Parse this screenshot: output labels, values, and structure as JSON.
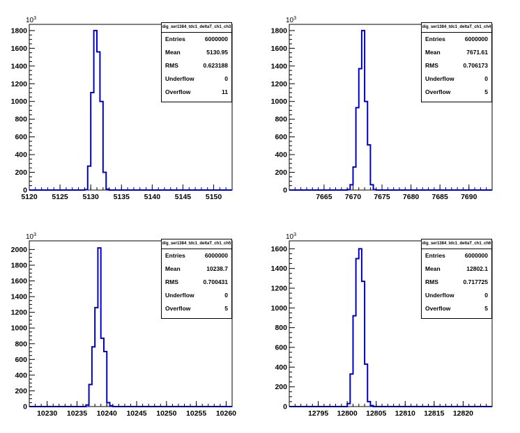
{
  "colors": {
    "line": "#0000cc",
    "axis": "#000000",
    "background": "#ffffff"
  },
  "chart_data": [
    {
      "type": "histogram",
      "title": "dig_ser1384_tdc1_deltaT_ch1_ch3",
      "y_multiplier": "10",
      "y_multiplier_exp": "3",
      "xlim": [
        5120,
        5153
      ],
      "ylim": [
        0,
        1870
      ],
      "x_ticks": [
        5120,
        5125,
        5130,
        5135,
        5140,
        5145,
        5150
      ],
      "y_ticks": [
        0,
        200,
        400,
        600,
        800,
        1000,
        1200,
        1400,
        1600,
        1800
      ],
      "bin_width": 0.5,
      "bins": [
        [
          5128.5,
          0
        ],
        [
          5129,
          5
        ],
        [
          5129.5,
          270
        ],
        [
          5130,
          1100
        ],
        [
          5130.5,
          1800
        ],
        [
          5131,
          1560
        ],
        [
          5131.5,
          1000
        ],
        [
          5132,
          200
        ],
        [
          5132.5,
          10
        ],
        [
          5133,
          0
        ]
      ],
      "stats": [
        {
          "label": "Entries",
          "value": "6000000"
        },
        {
          "label": "Mean",
          "value": "5130.95"
        },
        {
          "label": "RMS",
          "value": "0.623188"
        },
        {
          "label": "Underflow",
          "value": "0"
        },
        {
          "label": "Overflow",
          "value": "11"
        }
      ]
    },
    {
      "type": "histogram",
      "title": "dig_ser1384_tdc1_deltaT_ch1_ch4",
      "y_multiplier": "10",
      "y_multiplier_exp": "3",
      "xlim": [
        7659,
        7694
      ],
      "ylim": [
        0,
        1870
      ],
      "x_ticks": [
        7665,
        7670,
        7675,
        7680,
        7685,
        7690
      ],
      "y_ticks": [
        0,
        200,
        400,
        600,
        800,
        1000,
        1200,
        1400,
        1600,
        1800
      ],
      "bin_width": 0.5,
      "bins": [
        [
          7668.5,
          0
        ],
        [
          7669,
          5
        ],
        [
          7669.5,
          60
        ],
        [
          7670,
          260
        ],
        [
          7670.5,
          930
        ],
        [
          7671,
          1370
        ],
        [
          7671.5,
          1800
        ],
        [
          7672,
          1000
        ],
        [
          7672.5,
          510
        ],
        [
          7673,
          60
        ],
        [
          7673.5,
          5
        ],
        [
          7674,
          0
        ]
      ],
      "stats": [
        {
          "label": "Entries",
          "value": "6000000"
        },
        {
          "label": "Mean",
          "value": "7671.61"
        },
        {
          "label": "RMS",
          "value": "0.706173"
        },
        {
          "label": "Underflow",
          "value": "0"
        },
        {
          "label": "Overflow",
          "value": "5"
        }
      ]
    },
    {
      "type": "histogram",
      "title": "dig_ser1384_tdc1_deltaT_ch1_ch5",
      "y_multiplier": "10",
      "y_multiplier_exp": "3",
      "xlim": [
        10227,
        10261
      ],
      "ylim": [
        0,
        2110
      ],
      "x_ticks": [
        10230,
        10235,
        10240,
        10245,
        10250,
        10255,
        10260
      ],
      "y_ticks": [
        0,
        200,
        400,
        600,
        800,
        1000,
        1200,
        1400,
        1600,
        1800,
        2000
      ],
      "bin_width": 0.5,
      "bins": [
        [
          10236,
          0
        ],
        [
          10236.5,
          20
        ],
        [
          10237,
          280
        ],
        [
          10237.5,
          760
        ],
        [
          10238,
          1260
        ],
        [
          10238.5,
          2020
        ],
        [
          10239,
          870
        ],
        [
          10239.5,
          700
        ],
        [
          10240,
          50
        ],
        [
          10240.5,
          10
        ],
        [
          10241,
          0
        ]
      ],
      "stats": [
        {
          "label": "Entries",
          "value": "6000000"
        },
        {
          "label": "Mean",
          "value": "10238.7"
        },
        {
          "label": "RMS",
          "value": "0.700431"
        },
        {
          "label": "Underflow",
          "value": "0"
        },
        {
          "label": "Overflow",
          "value": "5"
        }
      ]
    },
    {
      "type": "histogram",
      "title": "dig_ser1384_tdc1_deltaT_ch1_ch6",
      "y_multiplier": "10",
      "y_multiplier_exp": "3",
      "xlim": [
        12790,
        12825
      ],
      "ylim": [
        0,
        1680
      ],
      "x_ticks": [
        12795,
        12800,
        12805,
        12810,
        12815,
        12820
      ],
      "y_ticks": [
        0,
        200,
        400,
        600,
        800,
        1000,
        1200,
        1400,
        1600
      ],
      "bin_width": 0.5,
      "bins": [
        [
          12799.5,
          0
        ],
        [
          12800,
          30
        ],
        [
          12800.5,
          330
        ],
        [
          12801,
          920
        ],
        [
          12801.5,
          1500
        ],
        [
          12802,
          1600
        ],
        [
          12802.5,
          1270
        ],
        [
          12803,
          430
        ],
        [
          12803.5,
          50
        ],
        [
          12804,
          10
        ],
        [
          12804.5,
          0
        ]
      ],
      "stats": [
        {
          "label": "Entries",
          "value": "6000000"
        },
        {
          "label": "Mean",
          "value": "12802.1"
        },
        {
          "label": "RMS",
          "value": "0.717725"
        },
        {
          "label": "Underflow",
          "value": "0"
        },
        {
          "label": "Overflow",
          "value": "5"
        }
      ]
    }
  ]
}
